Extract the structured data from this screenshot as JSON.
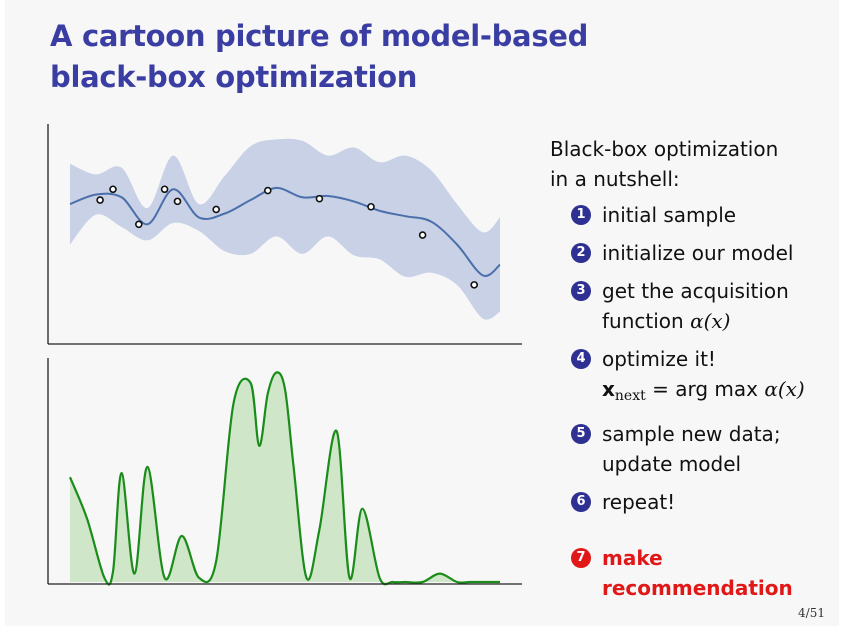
{
  "title": {
    "line1": "A cartoon picture of model-based",
    "line2": "black-box optimization"
  },
  "intro": {
    "line1": "Black-box optimization",
    "line2": "in a nutshell:"
  },
  "steps": [
    {
      "num": "1",
      "lines": [
        "initial sample"
      ]
    },
    {
      "num": "2",
      "lines": [
        "initialize our model"
      ]
    },
    {
      "num": "3",
      "lines": [
        "get the acquisition",
        "function"
      ],
      "math": "α(x)"
    },
    {
      "num": "4",
      "lines": [
        "optimize it!"
      ],
      "formula": {
        "var": "x",
        "sub": "next",
        "eq": "= arg max",
        "fn": "α(x)"
      }
    },
    {
      "num": "5",
      "lines": [
        "sample new data;",
        "update model"
      ]
    },
    {
      "num": "6",
      "lines": [
        "repeat!"
      ]
    },
    {
      "num": "7",
      "lines": [
        "make",
        "recommendation"
      ]
    }
  ],
  "page_number": "4/51",
  "colors": {
    "title": "#3a3ea3",
    "step_bullet": "#2e3192",
    "highlight": "#e01818",
    "band": "#c2cce3",
    "mean": "#4a6faa",
    "acq_line": "#1a8c1a",
    "acq_fill": "#cfe6c8"
  },
  "chart_data": [
    {
      "type": "line",
      "description_role": "surrogate model",
      "x": [
        0,
        0.06,
        0.12,
        0.18,
        0.24,
        0.3,
        0.36,
        0.42,
        0.48,
        0.54,
        0.6,
        0.66,
        0.72,
        0.78,
        0.84,
        0.9,
        0.96,
        1.0
      ],
      "mean": [
        0.55,
        0.62,
        0.6,
        0.4,
        0.66,
        0.45,
        0.48,
        0.58,
        0.67,
        0.6,
        0.61,
        0.57,
        0.5,
        0.46,
        0.42,
        0.25,
        0.02,
        0.1
      ],
      "band_half_width": [
        0.3,
        0.15,
        0.22,
        0.12,
        0.25,
        0.1,
        0.28,
        0.4,
        0.36,
        0.42,
        0.3,
        0.4,
        0.36,
        0.45,
        0.38,
        0.3,
        0.32,
        0.35
      ],
      "observations": {
        "x": [
          0.07,
          0.1,
          0.16,
          0.22,
          0.25,
          0.34,
          0.46,
          0.58,
          0.7,
          0.82,
          0.94
        ],
        "y": [
          0.58,
          0.66,
          0.4,
          0.66,
          0.57,
          0.51,
          0.65,
          0.59,
          0.53,
          0.32,
          -0.05
        ]
      },
      "ylim": [
        -0.4,
        1.1
      ],
      "grid": false
    },
    {
      "type": "area",
      "description_role": "acquisition function",
      "x": [
        0,
        0.04,
        0.08,
        0.1,
        0.12,
        0.15,
        0.18,
        0.22,
        0.26,
        0.3,
        0.34,
        0.38,
        0.42,
        0.44,
        0.46,
        0.48,
        0.5,
        0.52,
        0.55,
        0.58,
        0.62,
        0.65,
        0.68,
        0.72,
        0.75,
        0.78,
        0.82,
        0.86,
        0.9,
        0.93,
        0.96,
        1.0
      ],
      "y": [
        0.5,
        0.3,
        0.02,
        0.05,
        0.52,
        0.04,
        0.55,
        0.02,
        0.22,
        0.02,
        0.1,
        0.85,
        0.95,
        0.65,
        0.9,
        1.0,
        0.92,
        0.55,
        0.02,
        0.25,
        0.72,
        0.02,
        0.35,
        0.02,
        0.0,
        0.0,
        0.0,
        0.04,
        0.0,
        0.0,
        0.0,
        0.0
      ],
      "ylim": [
        0,
        1.05
      ],
      "grid": false
    }
  ]
}
